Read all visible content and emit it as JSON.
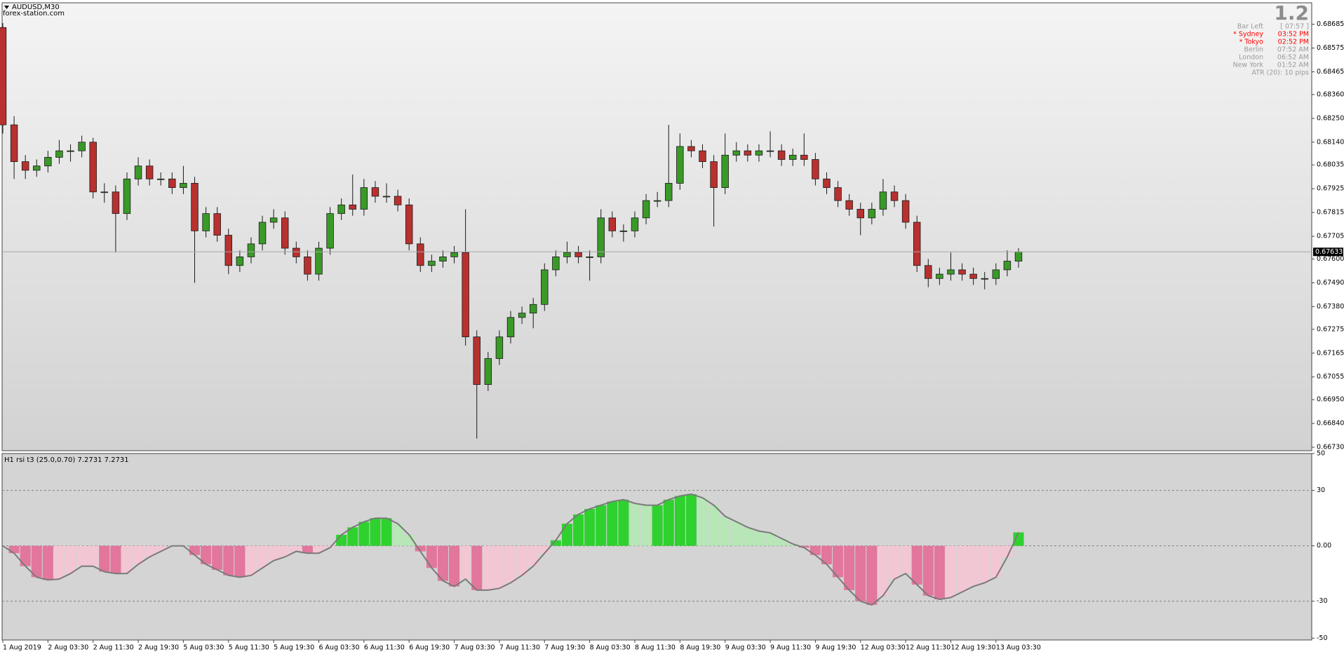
{
  "chart_data": [
    {
      "type": "candlestick",
      "title": "AUDUSD,M30",
      "subtitle": "forex-station.com",
      "categories": [
        "1 Aug 2019",
        null,
        null,
        null,
        "2 Aug 03:30",
        null,
        null,
        null,
        "2 Aug 11:30",
        null,
        null,
        null,
        "2 Aug 19:30",
        null,
        null,
        null,
        "5 Aug 03:30",
        null,
        null,
        null,
        "5 Aug 11:30",
        null,
        null,
        null,
        "5 Aug 19:30",
        null,
        null,
        null,
        "6 Aug 03:30",
        null,
        null,
        null,
        "6 Aug 11:30",
        null,
        null,
        null,
        "6 Aug 19:30",
        null,
        null,
        null,
        "7 Aug 03:30",
        null,
        null,
        null,
        "7 Aug 11:30",
        null,
        null,
        null,
        "7 Aug 19:30",
        null,
        null,
        null,
        "8 Aug 03:30",
        null,
        null,
        null,
        "8 Aug 11:30",
        null,
        null,
        null,
        "8 Aug 19:30",
        null,
        null,
        null,
        "9 Aug 03:30",
        null,
        null,
        null,
        "9 Aug 11:30",
        null,
        null,
        null,
        "9 Aug 19:30",
        null,
        null,
        null,
        "12 Aug 03:30",
        null,
        null,
        null,
        "12 Aug 11:30",
        null,
        null,
        null,
        "12 Aug 19:30",
        null,
        null,
        null,
        "13 Aug 03:30",
        null,
        null
      ],
      "open": [
        0.6867,
        0.6822,
        0.6805,
        0.6801,
        0.6803,
        0.6807,
        0.681,
        0.681,
        0.6814,
        0.6791,
        0.6791,
        0.6781,
        0.6797,
        0.6803,
        0.6797,
        0.6797,
        0.6793,
        0.6795,
        0.6773,
        0.6781,
        0.6771,
        0.6757,
        0.6761,
        0.6767,
        0.6777,
        0.6779,
        0.6765,
        0.6761,
        0.6753,
        0.6765,
        0.6781,
        0.6785,
        0.6783,
        0.6793,
        0.6789,
        0.6789,
        0.6785,
        0.6767,
        0.6757,
        0.6759,
        0.6761,
        0.6763,
        0.6724,
        0.6702,
        0.6714,
        0.6724,
        0.6733,
        0.6735,
        0.6739,
        0.6755,
        0.6761,
        0.6763,
        0.6761,
        0.6761,
        0.6779,
        0.6773,
        0.6773,
        0.6779,
        0.6787,
        0.6787,
        0.6795,
        0.6812,
        0.681,
        0.6805,
        0.6793,
        0.6808,
        0.681,
        0.6808,
        0.681,
        0.681,
        0.6806,
        0.6808,
        0.6806,
        0.6797,
        0.6793,
        0.6787,
        0.6783,
        0.6779,
        0.6783,
        0.6791,
        0.6787,
        0.6777,
        0.6757,
        0.6751,
        0.6753,
        0.6755,
        0.6753,
        0.6751,
        0.6751,
        0.6755,
        0.6759
      ],
      "high": [
        0.6869,
        0.6826,
        0.6808,
        0.6806,
        0.681,
        0.6815,
        0.6813,
        0.6817,
        0.6816,
        0.6795,
        0.6794,
        0.68,
        0.6807,
        0.6806,
        0.68,
        0.68,
        0.6803,
        0.6798,
        0.6784,
        0.6784,
        0.6774,
        0.6764,
        0.677,
        0.678,
        0.6783,
        0.6782,
        0.6768,
        0.6764,
        0.6768,
        0.6784,
        0.6788,
        0.6799,
        0.6797,
        0.6796,
        0.6795,
        0.6792,
        0.6788,
        0.677,
        0.6762,
        0.6764,
        0.6766,
        0.6783,
        0.6727,
        0.6717,
        0.6727,
        0.6736,
        0.6738,
        0.6742,
        0.6758,
        0.6764,
        0.6768,
        0.6766,
        0.6764,
        0.6783,
        0.6782,
        0.6776,
        0.6782,
        0.679,
        0.6791,
        0.6822,
        0.6818,
        0.6815,
        0.6813,
        0.6808,
        0.6818,
        0.6814,
        0.6813,
        0.6813,
        0.6819,
        0.6813,
        0.6811,
        0.6818,
        0.6809,
        0.68,
        0.6796,
        0.679,
        0.6786,
        0.6786,
        0.6797,
        0.6794,
        0.679,
        0.678,
        0.676,
        0.6756,
        0.6763,
        0.6758,
        0.6756,
        0.6754,
        0.6758,
        0.6764,
        0.6765
      ],
      "low": [
        0.6818,
        0.6797,
        0.6797,
        0.6798,
        0.68,
        0.6804,
        0.6805,
        0.6807,
        0.6788,
        0.6786,
        0.6763,
        0.6778,
        0.6794,
        0.6794,
        0.6794,
        0.679,
        0.679,
        0.6749,
        0.677,
        0.6768,
        0.6753,
        0.6754,
        0.6758,
        0.6764,
        0.6774,
        0.6762,
        0.6758,
        0.675,
        0.675,
        0.6762,
        0.6778,
        0.678,
        0.678,
        0.6786,
        0.6786,
        0.6782,
        0.6764,
        0.6754,
        0.6754,
        0.6756,
        0.6758,
        0.672,
        0.6677,
        0.6699,
        0.6711,
        0.6721,
        0.673,
        0.6728,
        0.6736,
        0.6752,
        0.6758,
        0.6758,
        0.675,
        0.6758,
        0.677,
        0.6768,
        0.677,
        0.6776,
        0.6784,
        0.6784,
        0.6792,
        0.6807,
        0.6802,
        0.6775,
        0.679,
        0.6805,
        0.6805,
        0.6805,
        0.6807,
        0.6803,
        0.6803,
        0.6803,
        0.6794,
        0.679,
        0.6784,
        0.678,
        0.6771,
        0.6776,
        0.678,
        0.6784,
        0.6774,
        0.6754,
        0.6747,
        0.6748,
        0.675,
        0.675,
        0.6748,
        0.6746,
        0.6748,
        0.6752,
        0.6756
      ],
      "close": [
        0.6822,
        0.6805,
        0.6801,
        0.6803,
        0.6807,
        0.681,
        0.681,
        0.6814,
        0.6791,
        0.6791,
        0.6781,
        0.6797,
        0.6803,
        0.6797,
        0.6797,
        0.6793,
        0.6795,
        0.6773,
        0.6781,
        0.6771,
        0.6757,
        0.6761,
        0.6767,
        0.6777,
        0.6779,
        0.6765,
        0.6761,
        0.6753,
        0.6765,
        0.6781,
        0.6785,
        0.6783,
        0.6793,
        0.6789,
        0.6789,
        0.6785,
        0.6767,
        0.6757,
        0.6759,
        0.6761,
        0.6763,
        0.6724,
        0.6702,
        0.6714,
        0.6724,
        0.6733,
        0.6735,
        0.6739,
        0.6755,
        0.6761,
        0.6763,
        0.6761,
        0.6761,
        0.6779,
        0.6773,
        0.6773,
        0.6779,
        0.6787,
        0.6787,
        0.6795,
        0.6812,
        0.681,
        0.6805,
        0.6793,
        0.6808,
        0.681,
        0.6808,
        0.681,
        0.681,
        0.6806,
        0.6808,
        0.6806,
        0.6797,
        0.6793,
        0.6787,
        0.6783,
        0.6779,
        0.6783,
        0.6791,
        0.6787,
        0.6777,
        0.6757,
        0.6751,
        0.6753,
        0.6755,
        0.6753,
        0.6751,
        0.6751,
        0.6755,
        0.6759,
        0.67633
      ],
      "up_color": "#3a9a28",
      "down_color": "#b8312f",
      "wick_color": "#1a1a1a",
      "ylim": [
        0.66714,
        0.68784
      ],
      "yticks": [
        0.68685,
        0.68575,
        0.68465,
        {
          "value": 0.6836,
          "label": "0.68360"
        },
        {
          "value": 0.6825,
          "label": "0.68250"
        },
        {
          "value": 0.6814,
          "label": "0.68140"
        },
        0.68035,
        0.67925,
        0.67815,
        0.67705,
        {
          "value": 0.676,
          "label": "0.67600"
        },
        {
          "value": 0.6749,
          "label": "0.67490"
        },
        {
          "value": 0.6738,
          "label": "0.67380"
        },
        0.67275,
        0.67165,
        0.67055,
        {
          "value": 0.6695,
          "label": "0.66950"
        },
        {
          "value": 0.6684,
          "label": "0.66840"
        },
        {
          "value": 0.6673,
          "label": "0.66730"
        }
      ],
      "current_price": 0.67633
    },
    {
      "type": "histogram",
      "title": "H1 rsi t3 (25.0,0.70) 7.2731 7.2731",
      "values": [
        0,
        -4,
        -11,
        -17,
        -18.5,
        -18,
        -15,
        -11,
        -11,
        -14,
        -15,
        -15,
        -10,
        -6,
        -3,
        0,
        0,
        -5,
        -10,
        -13,
        -16,
        -17,
        -16,
        -12,
        -8,
        -6,
        -3,
        -4,
        -4,
        -1,
        6,
        10,
        13,
        15,
        15,
        12,
        6,
        -3,
        -12,
        -19,
        -22,
        -18,
        -24,
        -24,
        -23,
        -20,
        -16,
        -11,
        -4,
        3,
        12,
        17,
        20,
        22,
        24,
        25,
        23,
        22,
        22,
        25,
        27,
        28,
        26,
        22,
        16,
        13,
        10,
        8,
        7,
        4,
        1,
        -1,
        -5,
        -10,
        -17,
        -24,
        -30,
        -32,
        -27,
        -18,
        -15,
        -21,
        -27,
        -29,
        -28,
        -25,
        -22,
        -20,
        -17,
        -6,
        7.2731
      ],
      "colors": {
        "rising_positive": "#2fd12f",
        "falling_positive": "#b7e6b7",
        "falling_negative": "#e2769c",
        "rising_negative": "#f3c6d4"
      },
      "line_color": "#7a7a7a",
      "ylim": [
        -51,
        50
      ],
      "yticks": [
        50,
        30,
        {
          "value": 0,
          "label": "0.00"
        },
        -30,
        -50
      ],
      "levels": [
        30,
        0,
        -30
      ]
    }
  ],
  "info_panel": {
    "version": "1.2",
    "rows": [
      {
        "label": "Bar Left",
        "value": "[ 07:57 ]",
        "color": "#9a9a9a"
      },
      {
        "label": "* Sydney",
        "value": "03:52 PM",
        "color": "#ff0000"
      },
      {
        "label": "* Tokyo",
        "value": "02:52 PM",
        "color": "#ff0000"
      },
      {
        "label": "Berlin",
        "value": "07:52 AM",
        "color": "#9a9a9a"
      },
      {
        "label": "London",
        "value": "06:52 AM",
        "color": "#9a9a9a"
      },
      {
        "label": "New York",
        "value": "01:52 AM",
        "color": "#9a9a9a"
      }
    ],
    "atr": "ATR (20): 10 pips",
    "color": "#9a9a9a"
  }
}
